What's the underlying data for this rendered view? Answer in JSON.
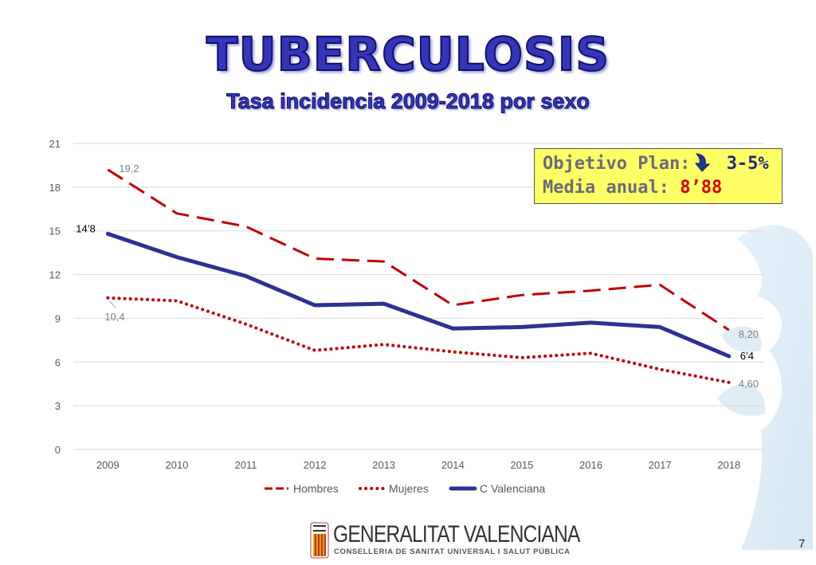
{
  "title": "TUBERCULOSIS",
  "subtitle": "Tasa incidencia 2009-2018 por sexo",
  "objective_box": {
    "line1_label": "Objetivo Plan:",
    "line1_value": "3-5%",
    "line2_label": "Media anual:",
    "line2_value": "8’88",
    "icon": "down-arrow-icon"
  },
  "chart_data": {
    "type": "line",
    "title": "",
    "xlabel": "",
    "ylabel": "",
    "x": [
      "2009",
      "2010",
      "2011",
      "2012",
      "2013",
      "2014",
      "2015",
      "2016",
      "2017",
      "2018"
    ],
    "ylim": [
      0,
      21
    ],
    "yticks": [
      "0",
      "3",
      "6",
      "9",
      "12",
      "15",
      "18",
      "21"
    ],
    "grid": true,
    "legend_position": "bottom",
    "series": [
      {
        "name": "Hombres",
        "style": "dashed",
        "color": "#c00000",
        "values": [
          19.2,
          16.2,
          15.3,
          13.1,
          12.9,
          9.9,
          10.6,
          10.9,
          11.3,
          8.2
        ],
        "data_labels": [
          {
            "index": 0,
            "text": "19,2"
          },
          {
            "index": 9,
            "text": "8,20"
          }
        ]
      },
      {
        "name": "Mujeres",
        "style": "dotted",
        "color": "#c00000",
        "values": [
          10.4,
          10.2,
          8.6,
          6.8,
          7.2,
          6.7,
          6.3,
          6.6,
          5.5,
          4.6
        ],
        "data_labels": [
          {
            "index": 0,
            "text": "10,4"
          },
          {
            "index": 9,
            "text": "4,60"
          }
        ]
      },
      {
        "name": "C Valenciana",
        "style": "solid",
        "color": "#2e3192",
        "values": [
          14.8,
          13.2,
          11.9,
          9.9,
          10.0,
          8.3,
          8.4,
          8.7,
          8.4,
          6.4
        ],
        "data_labels": [
          {
            "index": 0,
            "text": "14’8"
          },
          {
            "index": 9,
            "text": "6’4"
          }
        ]
      }
    ]
  },
  "logo": {
    "name": "GENERALITAT VALENCIANA",
    "subtitle": "CONSELLERIA DE SANITAT UNIVERSAL I SALUT PÚBLICA"
  },
  "page_number": "7"
}
